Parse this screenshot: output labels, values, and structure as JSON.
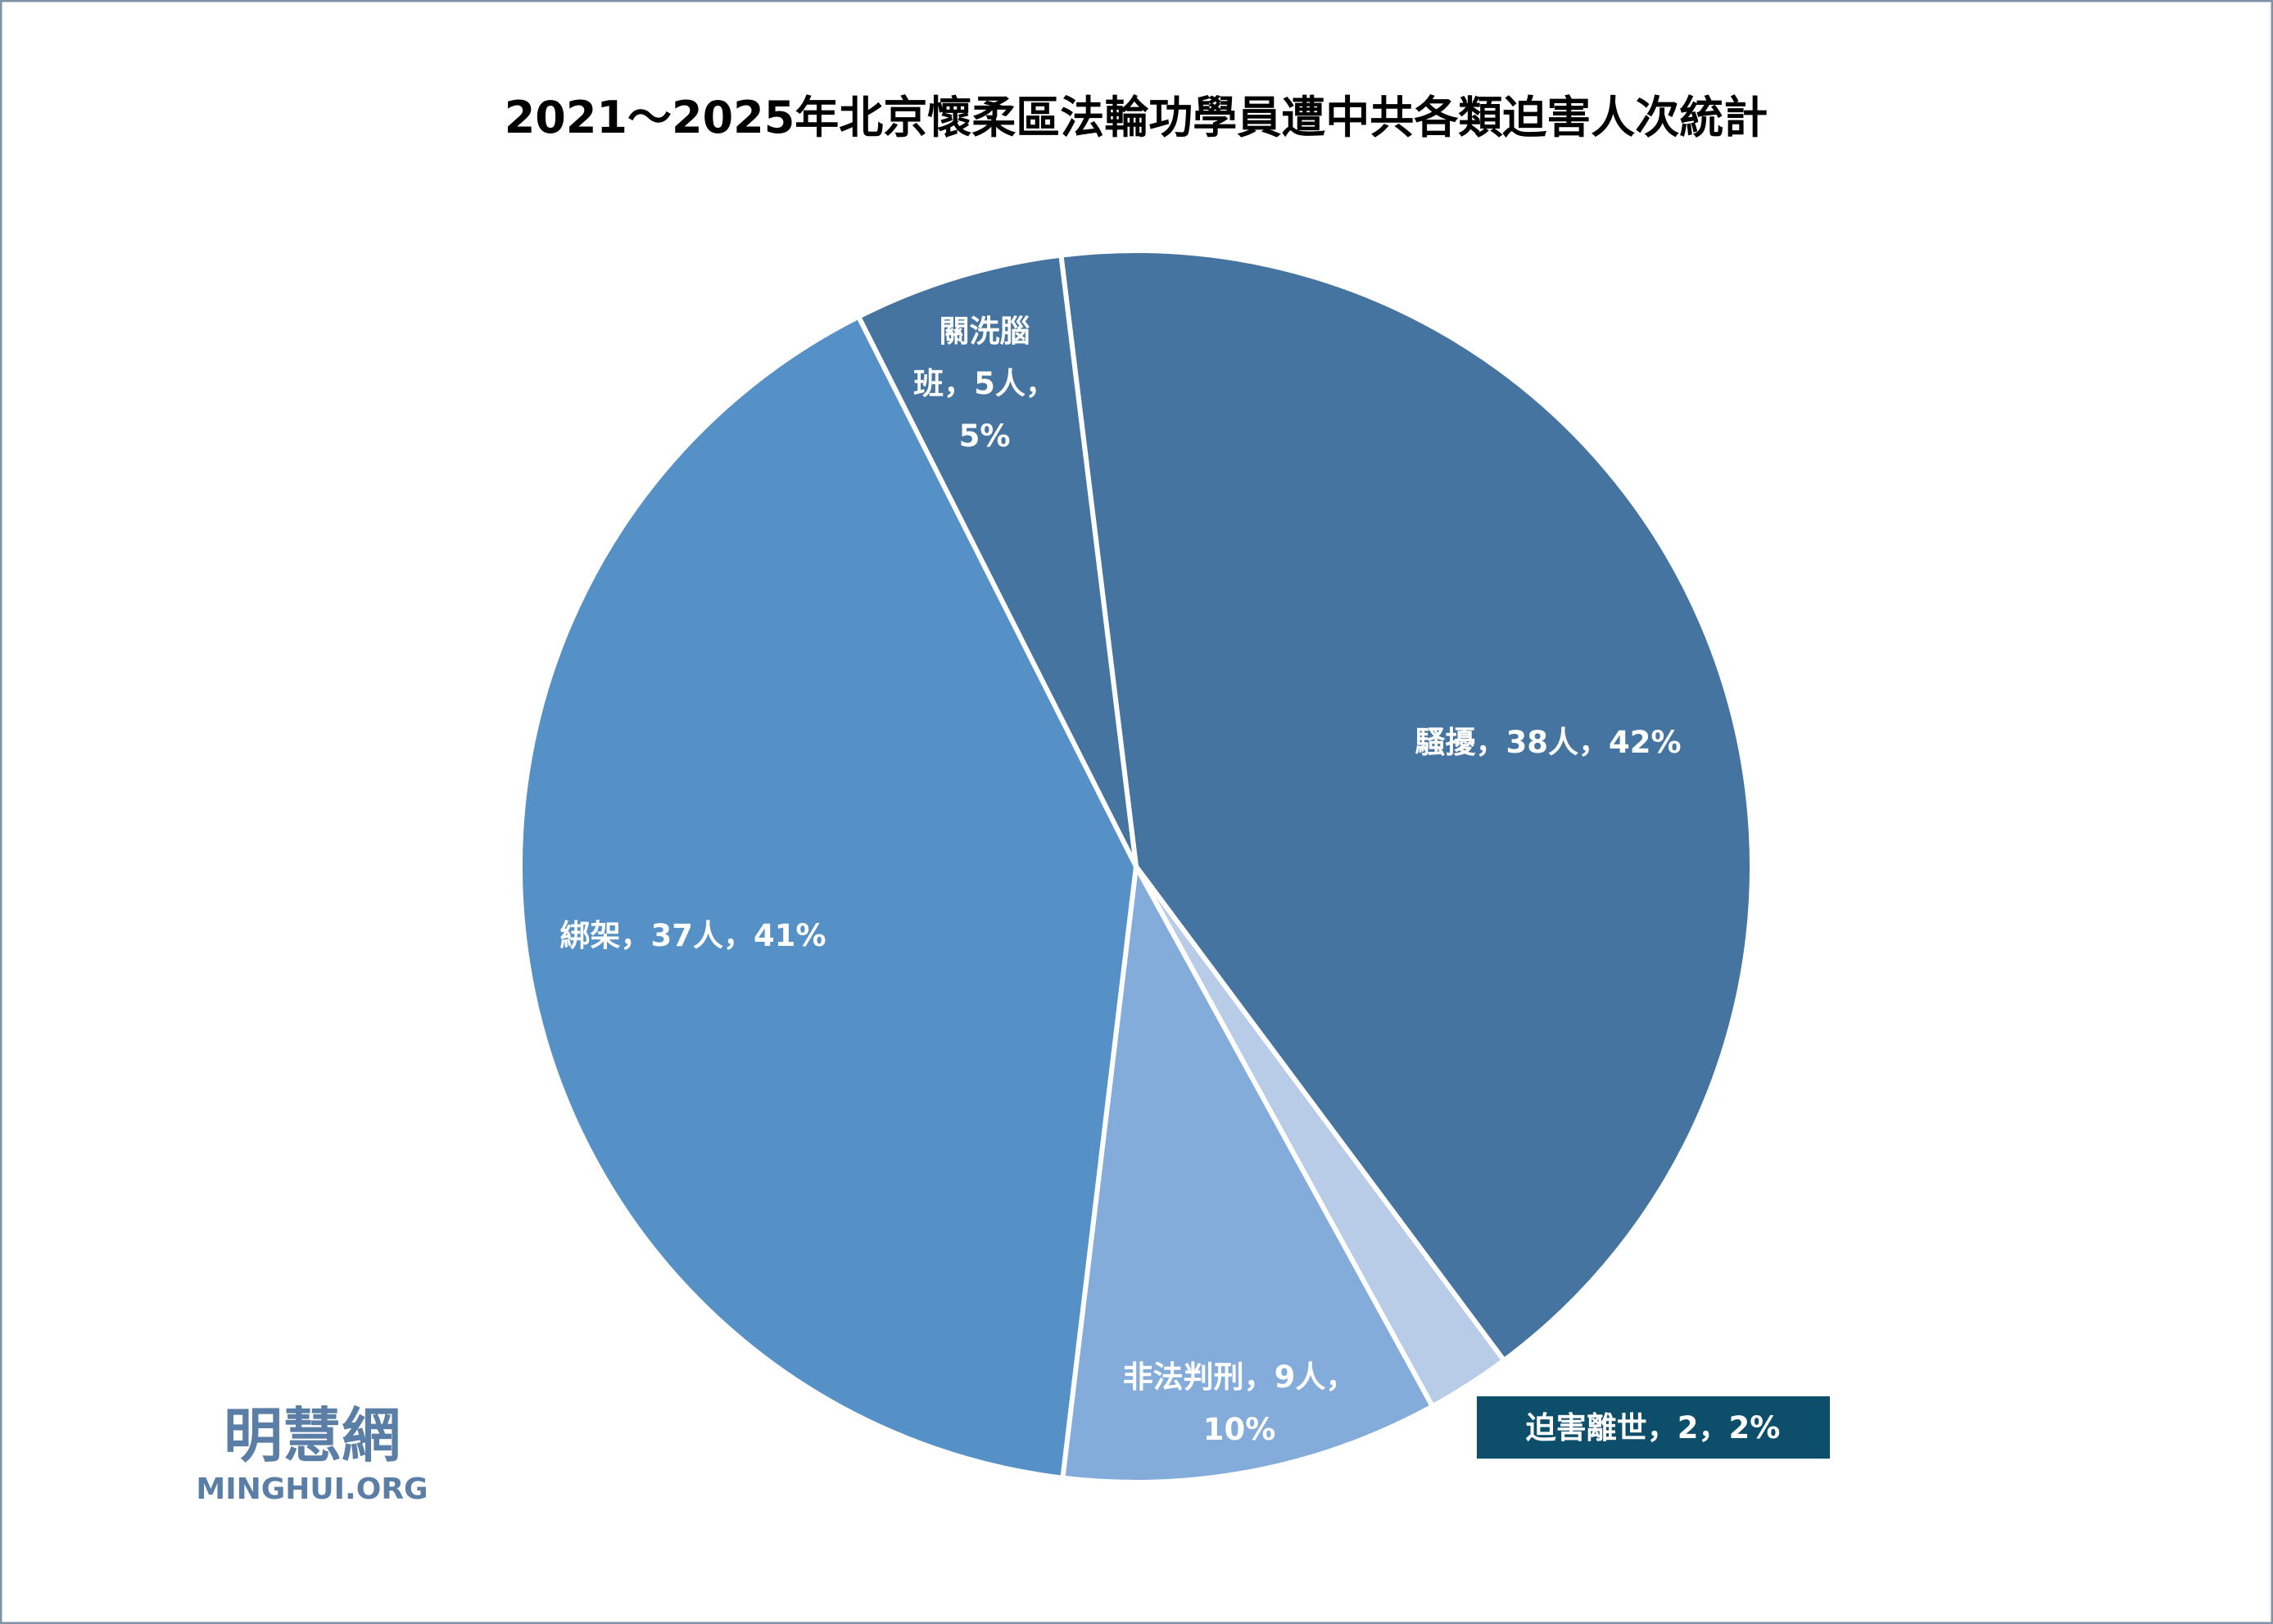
{
  "chart_data": {
    "type": "pie",
    "title": "2021～2025年北京懷柔區法輪功學員遭中共各類迫害人次統計",
    "slices": [
      {
        "category": "騷擾",
        "value": 38,
        "percent": 42,
        "color": "#44749f",
        "label_lines": [
          "騷擾，38人，42%"
        ]
      },
      {
        "category": "迫害離世",
        "value": 2,
        "percent": 2,
        "color": "#b8cce8",
        "label_lines": [
          "迫害離世，2，2%"
        ],
        "label_box_color": "#0d4f6b"
      },
      {
        "category": "非法判刑",
        "value": 9,
        "percent": 10,
        "color": "#84acdb",
        "label_lines": [
          "非法判刑，9人，",
          "10%"
        ]
      },
      {
        "category": "綁架",
        "value": 37,
        "percent": 41,
        "color": "#5591c7",
        "label_lines": [
          "綁架，37人，41%"
        ]
      },
      {
        "category": "關洗腦班",
        "value": 5,
        "percent": 5,
        "color": "#44749f",
        "label_lines": [
          "關洗腦",
          "班，5人，",
          "5%"
        ]
      }
    ],
    "legend": "none"
  },
  "logo": {
    "chinese": "明慧網",
    "latin": "MINGHUI.ORG",
    "color": "#5a7ea6"
  }
}
